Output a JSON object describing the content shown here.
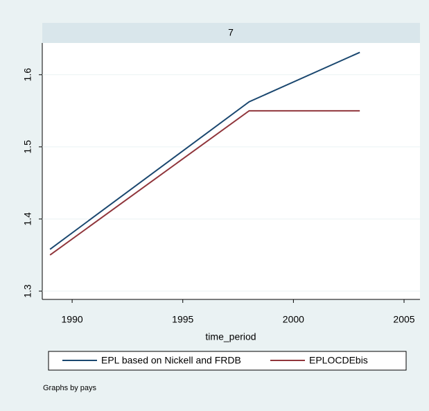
{
  "chart_data": {
    "type": "line",
    "panel_title": "7",
    "x": [
      1989,
      1998,
      2003
    ],
    "series": [
      {
        "name": "EPL based on Nickell and FRDB",
        "color": "#1a476f",
        "values": [
          1.358,
          1.5625,
          1.631
        ]
      },
      {
        "name": "EPLOCDEbis",
        "color": "#90353b",
        "values": [
          1.35,
          1.55,
          1.55
        ]
      }
    ],
    "xlim": [
      1988.65,
      2005.72
    ],
    "xticks": [
      1990,
      1995,
      2000,
      2005
    ],
    "ylim": [
      1.2885,
      1.644
    ],
    "yticks": [
      1.3,
      1.4,
      1.5,
      1.6
    ],
    "x_label": "time_period",
    "grid": true,
    "note": "Graphs by pays"
  }
}
